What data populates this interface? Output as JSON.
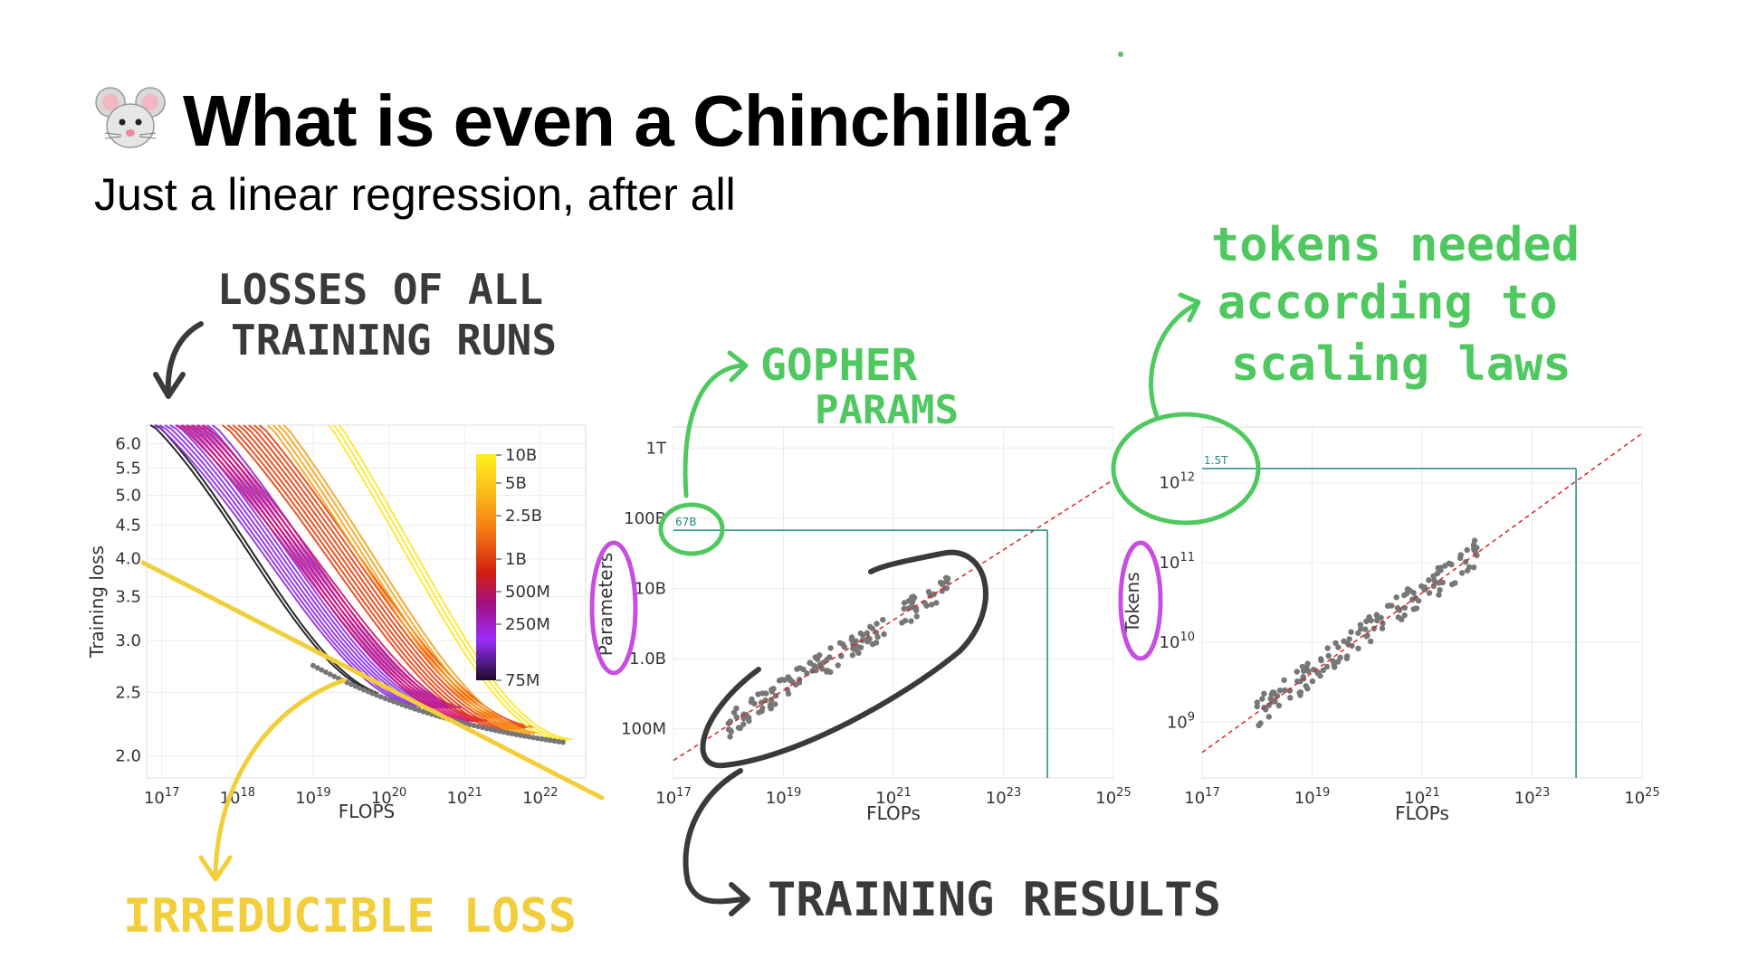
{
  "slide": {
    "title": "What is even a Chinchilla?",
    "subtitle": "Just a linear regression, after all",
    "title_icon": "mouse-face-icon"
  },
  "annotations": {
    "losses": [
      "LOSSES OF ALL",
      "TRAINING RUNS"
    ],
    "irreducible": "IRREDUCIBLE LOSS",
    "gopher": [
      "GOPHER",
      "PARAMS"
    ],
    "training_results": "TRAINING RESULTS",
    "tokens_needed": [
      "tokens needed",
      "according to",
      "scaling laws"
    ],
    "colors": {
      "dark": "#3a3a3a",
      "yellow": "#f2cf3a",
      "green": "#4fc95f",
      "purple": "#c74fe0"
    }
  },
  "chart_data": [
    {
      "type": "line",
      "id": "loss-curves",
      "xlabel": "FLOPS",
      "ylabel": "Training loss",
      "x_scale": "log",
      "xlim_log10": [
        16.8,
        22.6
      ],
      "ylim": [
        1.85,
        6.4
      ],
      "x_ticks": [
        {
          "exp": 17,
          "label": "10",
          "sup": "17"
        },
        {
          "exp": 18,
          "label": "10",
          "sup": "18"
        },
        {
          "exp": 19,
          "label": "10",
          "sup": "19"
        },
        {
          "exp": 20,
          "label": "10",
          "sup": "20"
        },
        {
          "exp": 21,
          "label": "10",
          "sup": "21"
        },
        {
          "exp": 22,
          "label": "10",
          "sup": "22"
        }
      ],
      "y_ticks": [
        {
          "v": 6.0,
          "label": "6.0"
        },
        {
          "v": 5.5,
          "label": "5.5"
        },
        {
          "v": 5.0,
          "label": "5.0"
        },
        {
          "v": 4.5,
          "label": "4.5"
        },
        {
          "v": 4.0,
          "label": "4.0"
        },
        {
          "v": 3.5,
          "label": "3.5"
        },
        {
          "v": 3.0,
          "label": "3.0"
        },
        {
          "v": 2.5,
          "label": "2.5"
        },
        {
          "v": 2.0,
          "label": "2.0"
        }
      ],
      "colorbar": {
        "labels": [
          "10B",
          "5B",
          "2.5B",
          "1B",
          "500M",
          "250M",
          "75M"
        ],
        "colors": [
          "#fdf11f",
          "#fcc21a",
          "#f57d15",
          "#d1200e",
          "#8f0ab3",
          "#9b2dfc",
          "#1c0a2a"
        ]
      },
      "series_groups": [
        {
          "name": "75M",
          "start": 16.85,
          "end": 19.8,
          "color": "#111111",
          "count": 2
        },
        {
          "name": "250M",
          "start": 16.9,
          "end": 20.3,
          "color": "#8a2be2",
          "count": 12
        },
        {
          "name": "500M",
          "start": 17.2,
          "end": 21.0,
          "color": "#d4116a",
          "count": 6
        },
        {
          "name": "1B",
          "start": 17.8,
          "end": 21.5,
          "color": "#e8400e",
          "count": 8
        },
        {
          "name": "2.5B",
          "start": 18.4,
          "end": 21.8,
          "color": "#f9a21a",
          "count": 4
        },
        {
          "name": "10B",
          "start": 19.2,
          "end": 22.3,
          "color": "#fde725",
          "count": 3
        }
      ],
      "frontier_color": "#777777"
    },
    {
      "type": "scatter",
      "id": "params-vs-flops",
      "xlabel": "FLOPs",
      "ylabel": "Parameters",
      "x_scale": "log",
      "y_scale": "log",
      "xlim_log10": [
        17,
        25
      ],
      "ylim_log10": [
        7.3,
        12.3
      ],
      "x_ticks": [
        {
          "exp": 17,
          "label": "10",
          "sup": "17"
        },
        {
          "exp": 19,
          "label": "10",
          "sup": "19"
        },
        {
          "exp": 21,
          "label": "10",
          "sup": "21"
        },
        {
          "exp": 23,
          "label": "10",
          "sup": "23"
        },
        {
          "exp": 25,
          "label": "10",
          "sup": "25"
        }
      ],
      "y_ticks": [
        {
          "exp": 12,
          "label": "1T"
        },
        {
          "exp": 11,
          "label": "100B"
        },
        {
          "exp": 10,
          "label": "10B"
        },
        {
          "exp": 9,
          "label": "1.0B"
        },
        {
          "exp": 8,
          "label": "100M"
        }
      ],
      "fit_line": {
        "x0": 17,
        "y0": 7.55,
        "slope": 0.5,
        "color": "#d62728"
      },
      "highlight": {
        "label": "67B",
        "y_log10": 10.83,
        "x_log10": 23.8,
        "color": "#1f8a80"
      },
      "points_range": {
        "x": [
          18.0,
          22.0
        ],
        "scatter": 0.18,
        "color": "#777777"
      }
    },
    {
      "type": "scatter",
      "id": "tokens-vs-flops",
      "xlabel": "FLOPs",
      "ylabel": "Tokens",
      "x_scale": "log",
      "y_scale": "log",
      "xlim_log10": [
        17,
        25
      ],
      "ylim_log10": [
        8.3,
        12.7
      ],
      "x_ticks": [
        {
          "exp": 17,
          "label": "10",
          "sup": "17"
        },
        {
          "exp": 19,
          "label": "10",
          "sup": "19"
        },
        {
          "exp": 21,
          "label": "10",
          "sup": "21"
        },
        {
          "exp": 23,
          "label": "10",
          "sup": "23"
        },
        {
          "exp": 25,
          "label": "10",
          "sup": "25"
        }
      ],
      "y_ticks": [
        {
          "exp": 12,
          "label": "10",
          "sup": "12"
        },
        {
          "exp": 11,
          "label": "10",
          "sup": "11"
        },
        {
          "exp": 10,
          "label": "10",
          "sup": "10"
        },
        {
          "exp": 9,
          "label": "10",
          "sup": "9"
        }
      ],
      "fit_line": {
        "x0": 17,
        "y0": 8.62,
        "slope": 0.5,
        "color": "#d62728"
      },
      "highlight": {
        "label": "1.5T",
        "y_log10": 12.18,
        "x_log10": 23.8,
        "color": "#1f8a80"
      },
      "points_range": {
        "x": [
          18.0,
          22.0
        ],
        "scatter": 0.18,
        "color": "#777777"
      }
    }
  ]
}
